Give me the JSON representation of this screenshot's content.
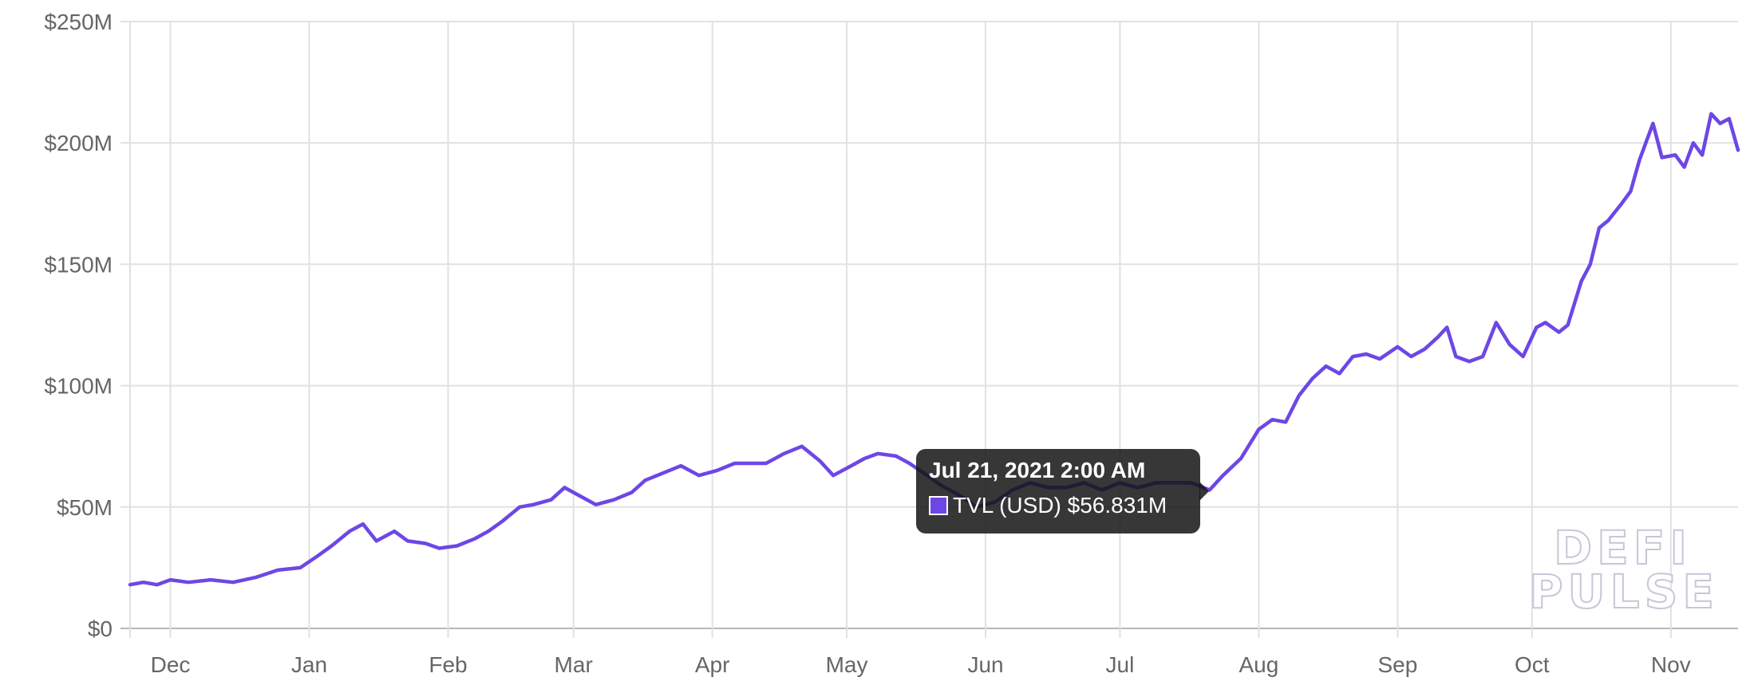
{
  "chart_data": {
    "type": "line",
    "title": "",
    "xlabel": "",
    "ylabel": "",
    "y_ticks": [
      "$0",
      "$50M",
      "$100M",
      "$150M",
      "$200M",
      "$250M"
    ],
    "y_tick_values": [
      0,
      50,
      100,
      150,
      200,
      250
    ],
    "ylim": [
      0,
      250
    ],
    "y_unit": "M USD",
    "x_tick_labels": [
      "Dec",
      "Jan",
      "Feb",
      "Mar",
      "Apr",
      "May",
      "Jun",
      "Jul",
      "Aug",
      "Sep",
      "Oct",
      "Nov"
    ],
    "x_tick_dates": [
      "2020-12-01",
      "2021-01-01",
      "2021-02-01",
      "2021-03-01",
      "2021-04-01",
      "2021-05-01",
      "2021-06-01",
      "2021-07-01",
      "2021-08-01",
      "2021-09-01",
      "2021-10-01",
      "2021-11-01"
    ],
    "xlim": [
      "2020-11-22",
      "2021-11-16"
    ],
    "grid": true,
    "series": [
      {
        "name": "TVL (USD)",
        "color": "#6d47e6",
        "x": [
          "2020-11-22",
          "2020-11-25",
          "2020-11-28",
          "2020-12-01",
          "2020-12-05",
          "2020-12-10",
          "2020-12-15",
          "2020-12-20",
          "2020-12-25",
          "2020-12-30",
          "2021-01-03",
          "2021-01-06",
          "2021-01-10",
          "2021-01-13",
          "2021-01-16",
          "2021-01-20",
          "2021-01-23",
          "2021-01-27",
          "2021-01-30",
          "2021-02-03",
          "2021-02-07",
          "2021-02-10",
          "2021-02-13",
          "2021-02-17",
          "2021-02-20",
          "2021-02-24",
          "2021-02-27",
          "2021-03-02",
          "2021-03-06",
          "2021-03-10",
          "2021-03-14",
          "2021-03-17",
          "2021-03-21",
          "2021-03-25",
          "2021-03-29",
          "2021-04-02",
          "2021-04-06",
          "2021-04-10",
          "2021-04-13",
          "2021-04-17",
          "2021-04-21",
          "2021-04-25",
          "2021-04-28",
          "2021-05-02",
          "2021-05-05",
          "2021-05-08",
          "2021-05-12",
          "2021-05-15",
          "2021-05-19",
          "2021-05-22",
          "2021-05-26",
          "2021-05-30",
          "2021-06-03",
          "2021-06-07",
          "2021-06-11",
          "2021-06-15",
          "2021-06-19",
          "2021-06-23",
          "2021-06-27",
          "2021-07-01",
          "2021-07-05",
          "2021-07-09",
          "2021-07-13",
          "2021-07-17",
          "2021-07-21",
          "2021-07-24",
          "2021-07-28",
          "2021-08-01",
          "2021-08-04",
          "2021-08-07",
          "2021-08-10",
          "2021-08-13",
          "2021-08-16",
          "2021-08-19",
          "2021-08-22",
          "2021-08-25",
          "2021-08-28",
          "2021-09-01",
          "2021-09-04",
          "2021-09-07",
          "2021-09-10",
          "2021-09-12",
          "2021-09-14",
          "2021-09-17",
          "2021-09-20",
          "2021-09-23",
          "2021-09-26",
          "2021-09-29",
          "2021-10-02",
          "2021-10-04",
          "2021-10-07",
          "2021-10-09",
          "2021-10-12",
          "2021-10-14",
          "2021-10-16",
          "2021-10-18",
          "2021-10-21",
          "2021-10-23",
          "2021-10-25",
          "2021-10-28",
          "2021-10-30",
          "2021-11-02",
          "2021-11-04",
          "2021-11-06",
          "2021-11-08",
          "2021-11-10",
          "2021-11-12",
          "2021-11-14",
          "2021-11-16"
        ],
        "values": [
          18,
          19,
          18,
          20,
          19,
          20,
          19,
          21,
          24,
          25,
          30,
          34,
          40,
          43,
          36,
          40,
          36,
          35,
          33,
          34,
          37,
          40,
          44,
          50,
          51,
          53,
          58,
          55,
          51,
          53,
          56,
          61,
          64,
          67,
          63,
          65,
          68,
          68,
          68,
          72,
          75,
          69,
          63,
          67,
          70,
          72,
          71,
          68,
          63,
          59,
          55,
          50,
          52,
          57,
          60,
          58,
          58,
          60,
          57,
          60,
          58,
          60,
          60,
          60,
          57,
          63,
          70,
          82,
          86,
          85,
          96,
          103,
          108,
          105,
          112,
          113,
          111,
          116,
          112,
          115,
          120,
          124,
          112,
          110,
          112,
          126,
          117,
          112,
          124,
          126,
          122,
          125,
          143,
          150,
          165,
          168,
          175,
          180,
          193,
          208,
          194,
          195,
          190,
          200,
          195,
          212,
          208,
          210,
          197
        ]
      }
    ],
    "tooltip": {
      "title": "Jul 21, 2021 2:00 AM",
      "label": "TVL (USD) $56.831M",
      "x": "2021-07-21",
      "value": 56.831
    },
    "watermark": [
      "DEFI",
      "PULSE"
    ]
  }
}
